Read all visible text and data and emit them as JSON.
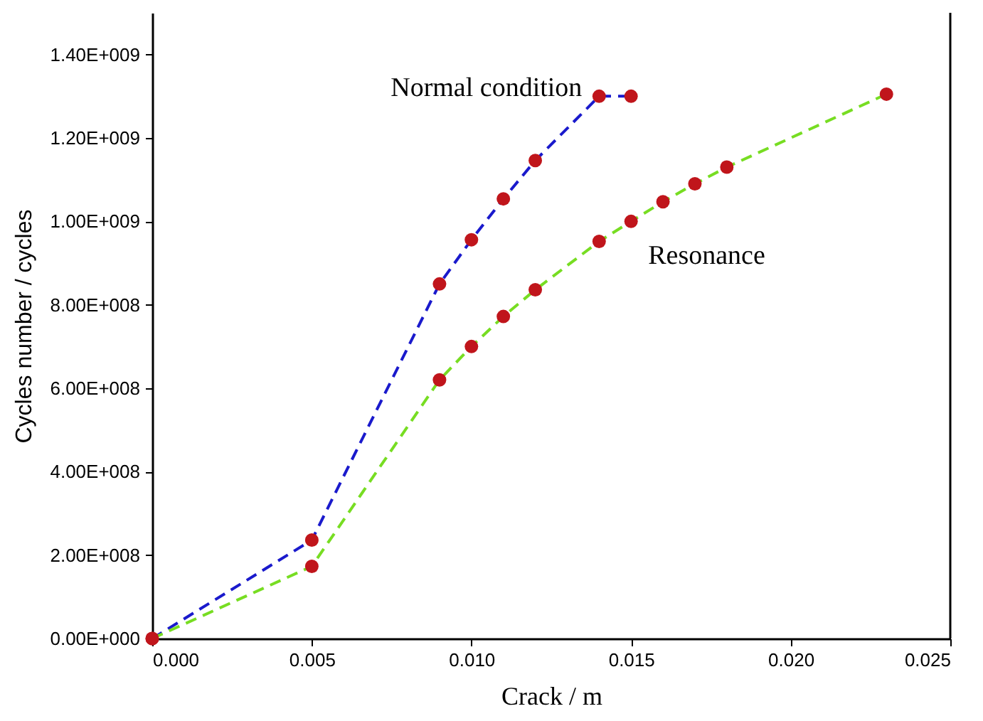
{
  "chart_data": {
    "type": "line",
    "xlabel": "Crack / m",
    "ylabel": "Cycles number / cycles",
    "xlim": [
      0,
      0.025
    ],
    "xticks": [
      {
        "value": 0,
        "label": "0.000"
      },
      {
        "value": 0.005,
        "label": "0.005"
      },
      {
        "value": 0.01,
        "label": "0.010"
      },
      {
        "value": 0.015,
        "label": "0.015"
      },
      {
        "value": 0.02,
        "label": "0.020"
      },
      {
        "value": 0.025,
        "label": "0.025"
      }
    ],
    "ylim": [
      0,
      1500000000
    ],
    "yticks": [
      {
        "value": 0,
        "label": "0.00E+000"
      },
      {
        "value": 200000000,
        "label": "2.00E+008"
      },
      {
        "value": 400000000,
        "label": "4.00E+008"
      },
      {
        "value": 600000000,
        "label": "6.00E+008"
      },
      {
        "value": 800000000,
        "label": "8.00E+008"
      },
      {
        "value": 1000000000,
        "label": "1.00E+009"
      },
      {
        "value": 1200000000,
        "label": "1.20E+009"
      },
      {
        "value": 1400000000,
        "label": "1.40E+009"
      }
    ],
    "grid": false,
    "marker": "circle",
    "line_style": "dashed",
    "series": [
      {
        "name": "Normal condition",
        "color": "#1a1acc",
        "x": [
          0,
          0.005,
          0.009,
          0.01,
          0.011,
          0.012,
          0.014,
          0.015
        ],
        "values": [
          0,
          236000000,
          850000000,
          956000000,
          1054000000,
          1146000000,
          1300000000,
          1300000000
        ]
      },
      {
        "name": "Resonance",
        "color": "#77dd22",
        "x": [
          0,
          0.005,
          0.009,
          0.01,
          0.011,
          0.012,
          0.014,
          0.015,
          0.016,
          0.017,
          0.018,
          0.023
        ],
        "values": [
          0,
          173000000,
          620000000,
          700000000,
          772000000,
          836000000,
          952000000,
          1000000000,
          1047000000,
          1090000000,
          1130000000,
          1305000000
        ]
      }
    ],
    "colors": [
      "#c0151b"
    ]
  }
}
